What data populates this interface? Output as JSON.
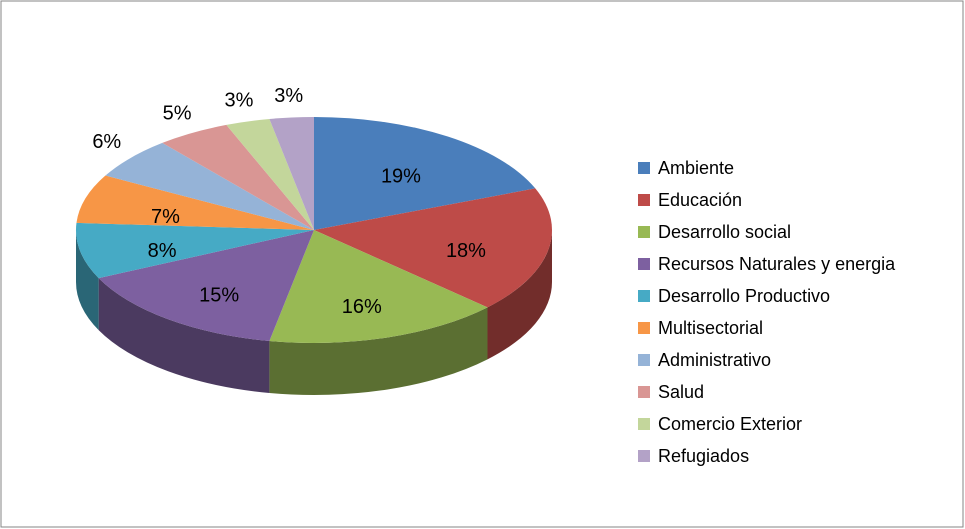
{
  "chart_data": {
    "type": "pie3d",
    "categories": [
      "Ambiente",
      "Educación",
      "Desarrollo social",
      "Recursos Naturales y energia",
      "Desarrollo Productivo",
      "Multisectorial",
      "Administrativo",
      "Salud",
      "Comercio Exterior",
      "Refugiados"
    ],
    "values": [
      19,
      18,
      16,
      15,
      8,
      7,
      6,
      5,
      3,
      3
    ],
    "value_labels": [
      "19%",
      "18%",
      "16%",
      "15%",
      "8%",
      "7%",
      "6%",
      "5%",
      "3%",
      "3%"
    ],
    "colors": [
      "#4a7ebb",
      "#be4b48",
      "#98b954",
      "#7d60a0",
      "#46aac5",
      "#f79646",
      "#95b3d7",
      "#d99694",
      "#c3d69b",
      "#b3a2c7"
    ],
    "legend": "right"
  }
}
